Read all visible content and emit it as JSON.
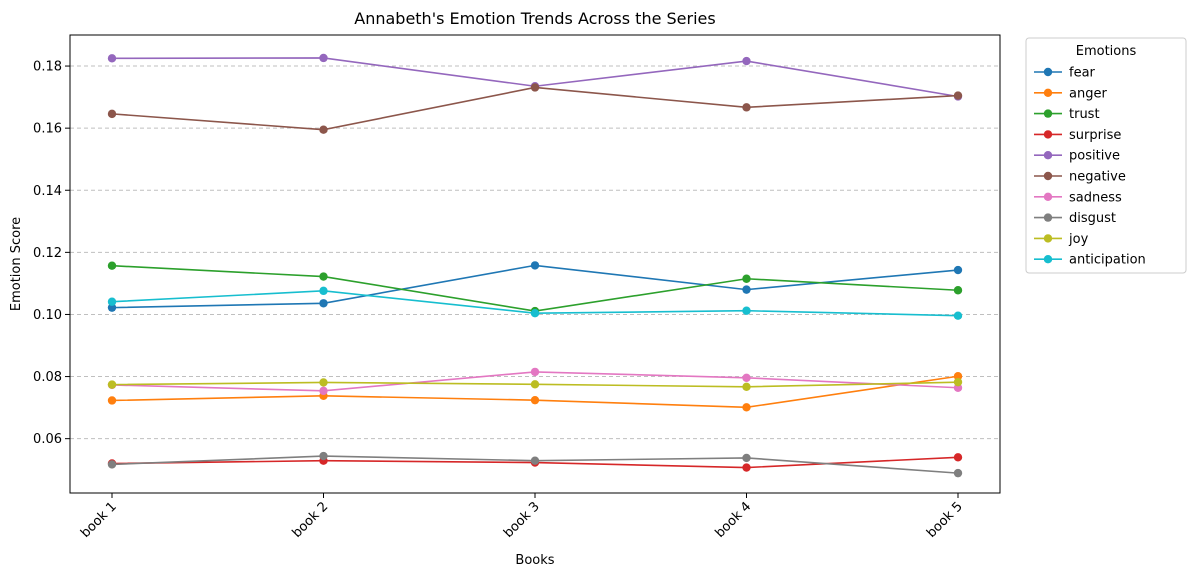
{
  "chart_data": {
    "type": "line",
    "title": "Annabeth's Emotion Trends Across the Series",
    "xlabel": "Books",
    "ylabel": "Emotion Score",
    "categories": [
      "book 1",
      "book 2",
      "book 3",
      "book 4",
      "book 5"
    ],
    "ylim": [
      0.0425,
      0.19
    ],
    "yticks": [
      0.06,
      0.08,
      0.1,
      0.12,
      0.14,
      0.16,
      0.18
    ],
    "ytick_labels": [
      "0.06",
      "0.08",
      "0.10",
      "0.12",
      "0.14",
      "0.16",
      "0.18"
    ],
    "grid": "horizontal dashed",
    "legend_title": "Emotions",
    "legend_position": "outside-top-right",
    "series": [
      {
        "name": "fear",
        "color": "#1f77b4",
        "values": [
          0.1022,
          0.1036,
          0.1158,
          0.108,
          0.1143
        ]
      },
      {
        "name": "anger",
        "color": "#ff7f0e",
        "values": [
          0.0723,
          0.0738,
          0.0724,
          0.0701,
          0.0801
        ]
      },
      {
        "name": "trust",
        "color": "#2ca02c",
        "values": [
          0.1157,
          0.1122,
          0.1011,
          0.1115,
          0.1078
        ]
      },
      {
        "name": "surprise",
        "color": "#d62728",
        "values": [
          0.052,
          0.0529,
          0.0523,
          0.0507,
          0.054
        ]
      },
      {
        "name": "positive",
        "color": "#9467bd",
        "values": [
          0.1825,
          0.1826,
          0.1735,
          0.1816,
          0.1702
        ]
      },
      {
        "name": "negative",
        "color": "#8c564b",
        "values": [
          0.1646,
          0.1595,
          0.1731,
          0.1667,
          0.1705
        ]
      },
      {
        "name": "sadness",
        "color": "#e377c2",
        "values": [
          0.0773,
          0.0754,
          0.0815,
          0.0796,
          0.0764
        ]
      },
      {
        "name": "disgust",
        "color": "#7f7f7f",
        "values": [
          0.0517,
          0.0544,
          0.0529,
          0.0538,
          0.0489
        ]
      },
      {
        "name": "joy",
        "color": "#bcbd22",
        "values": [
          0.0774,
          0.0781,
          0.0775,
          0.0767,
          0.0782
        ]
      },
      {
        "name": "anticipation",
        "color": "#17becf",
        "values": [
          0.1041,
          0.1076,
          0.1004,
          0.1012,
          0.0996
        ]
      }
    ]
  }
}
